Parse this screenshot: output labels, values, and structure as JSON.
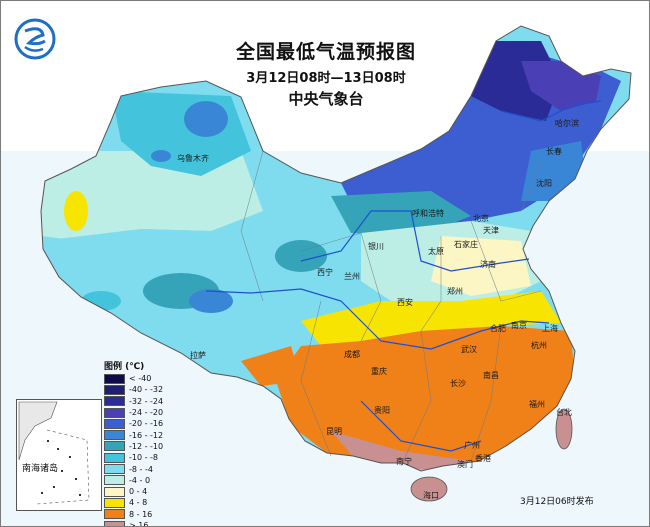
{
  "header": {
    "title": "全国最低气温预报图",
    "subtitle": "3月12日08时—13日08时",
    "agency": "中央气象台"
  },
  "issued": "3月12日06时发布",
  "inset_label": "南海诸岛",
  "legend": {
    "title": "图例 (℃)",
    "items": [
      {
        "label": "< -40",
        "color": "#0c0c4a"
      },
      {
        "label": "-40 - -32",
        "color": "#1f1f70"
      },
      {
        "label": "-32 - -24",
        "color": "#2b2b98"
      },
      {
        "label": "-24 - -20",
        "color": "#4a3fb4"
      },
      {
        "label": "-20 - -16",
        "color": "#3c5ed0"
      },
      {
        "label": "-16 - -12",
        "color": "#3a86d6"
      },
      {
        "label": "-12 - -10",
        "color": "#35a3b8"
      },
      {
        "label": "-10 - -8",
        "color": "#44c4dc"
      },
      {
        "label": "-8 - -4",
        "color": "#7fdcee"
      },
      {
        "label": "-4 - 0",
        "color": "#bdeee6"
      },
      {
        "label": "0 - 4",
        "color": "#fbf6c4"
      },
      {
        "label": "4 - 8",
        "color": "#f7e400"
      },
      {
        "label": "8 - 16",
        "color": "#f08018"
      },
      {
        "label": "> 16",
        "color": "#c89090"
      }
    ]
  },
  "cities": [
    {
      "name": "乌鲁木齐"
    },
    {
      "name": "哈尔滨"
    },
    {
      "name": "长春"
    },
    {
      "name": "沈阳"
    },
    {
      "name": "呼和浩特"
    },
    {
      "name": "北京"
    },
    {
      "name": "天津"
    },
    {
      "name": "银川"
    },
    {
      "name": "太原"
    },
    {
      "name": "石家庄"
    },
    {
      "name": "济南"
    },
    {
      "name": "西宁"
    },
    {
      "name": "兰州"
    },
    {
      "name": "郑州"
    },
    {
      "name": "西安"
    },
    {
      "name": "合肥"
    },
    {
      "name": "南京"
    },
    {
      "name": "上海"
    },
    {
      "name": "杭州"
    },
    {
      "name": "武汉"
    },
    {
      "name": "成都"
    },
    {
      "name": "重庆"
    },
    {
      "name": "拉萨"
    },
    {
      "name": "长沙"
    },
    {
      "name": "南昌"
    },
    {
      "name": "福州"
    },
    {
      "name": "台北"
    },
    {
      "name": "贵阳"
    },
    {
      "name": "昆明"
    },
    {
      "name": "南宁"
    },
    {
      "name": "广州"
    },
    {
      "name": "香港"
    },
    {
      "name": "澳门"
    },
    {
      "name": "海口"
    }
  ]
}
